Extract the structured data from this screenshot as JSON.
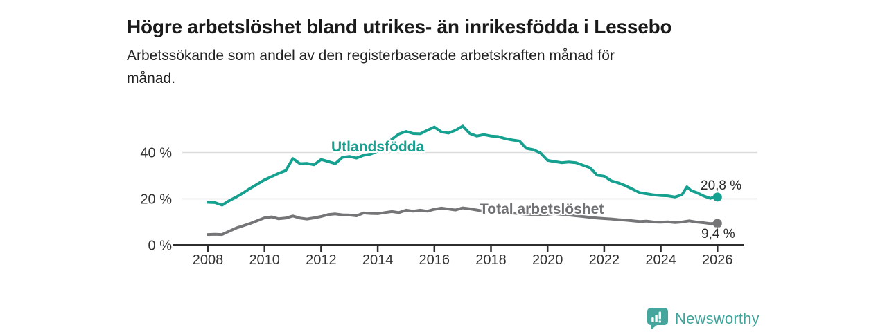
{
  "header": {
    "title": "Högre arbetslöshet bland utrikes- än inrikesfödda i Lessebo",
    "subtitle_lines": [
      "Arbetssökande som andel av den registerbaserade arbetskraften månad för",
      "månad."
    ]
  },
  "chart_data": {
    "type": "line",
    "unit": "%",
    "x_ticks": [
      2008,
      2010,
      2012,
      2014,
      2016,
      2018,
      2020,
      2022,
      2024,
      2026
    ],
    "y_ticks": [
      {
        "value": 0,
        "label": "0 %"
      },
      {
        "value": 20,
        "label": "20 %"
      },
      {
        "value": 40,
        "label": "40 %"
      }
    ],
    "xlim": [
      2006.8,
      2026.9
    ],
    "ylim": [
      0,
      57
    ],
    "grid": "horizontal",
    "legend_position": "inline-labels",
    "series": [
      {
        "name": "Utlandsfödda",
        "color": "#16A08F",
        "end_label": "20,8 %",
        "end_value": 20.8,
        "points": [
          [
            2008,
            18.5
          ],
          [
            2008.25,
            18.4
          ],
          [
            2008.5,
            17.3
          ],
          [
            2008.75,
            19.2
          ],
          [
            2009,
            20.8
          ],
          [
            2009.25,
            22.6
          ],
          [
            2009.5,
            24.6
          ],
          [
            2009.75,
            26.4
          ],
          [
            2010,
            28.2
          ],
          [
            2010.25,
            29.6
          ],
          [
            2010.5,
            31
          ],
          [
            2010.75,
            32.2
          ],
          [
            2011,
            37.4
          ],
          [
            2011.25,
            35.2
          ],
          [
            2011.5,
            35.3
          ],
          [
            2011.75,
            34.7
          ],
          [
            2012,
            37
          ],
          [
            2012.25,
            36.1
          ],
          [
            2012.5,
            35.2
          ],
          [
            2012.75,
            37.9
          ],
          [
            2013,
            38.3
          ],
          [
            2013.25,
            37.6
          ],
          [
            2013.5,
            38.8
          ],
          [
            2013.75,
            39.3
          ],
          [
            2014,
            40.6
          ],
          [
            2014.25,
            43.2
          ],
          [
            2014.5,
            45.7
          ],
          [
            2014.75,
            48
          ],
          [
            2015,
            49.1
          ],
          [
            2015.25,
            48.2
          ],
          [
            2015.5,
            48.1
          ],
          [
            2015.75,
            49.6
          ],
          [
            2016,
            51
          ],
          [
            2016.25,
            48.9
          ],
          [
            2016.5,
            48.4
          ],
          [
            2016.75,
            49.6
          ],
          [
            2017,
            51.4
          ],
          [
            2017.25,
            48.2
          ],
          [
            2017.5,
            47.1
          ],
          [
            2017.75,
            47.7
          ],
          [
            2018,
            47.1
          ],
          [
            2018.25,
            46.9
          ],
          [
            2018.5,
            46
          ],
          [
            2018.75,
            45.4
          ],
          [
            2019,
            45
          ],
          [
            2019.25,
            41.8
          ],
          [
            2019.5,
            41.2
          ],
          [
            2019.75,
            39.8
          ],
          [
            2020,
            36.6
          ],
          [
            2020.25,
            36.1
          ],
          [
            2020.5,
            35.6
          ],
          [
            2020.75,
            35.9
          ],
          [
            2021,
            35.6
          ],
          [
            2021.25,
            34.5
          ],
          [
            2021.5,
            33.4
          ],
          [
            2021.75,
            30.2
          ],
          [
            2022,
            29.8
          ],
          [
            2022.25,
            27.8
          ],
          [
            2022.5,
            26.9
          ],
          [
            2022.75,
            25.7
          ],
          [
            2023,
            24.2
          ],
          [
            2023.25,
            22.7
          ],
          [
            2023.5,
            22.2
          ],
          [
            2023.75,
            21.7
          ],
          [
            2024,
            21.4
          ],
          [
            2024.25,
            21.3
          ],
          [
            2024.5,
            20.8
          ],
          [
            2024.75,
            21.8
          ],
          [
            2024.92,
            25.2
          ],
          [
            2025.08,
            23.5
          ],
          [
            2025.25,
            22.8
          ],
          [
            2025.5,
            21.3
          ],
          [
            2025.75,
            20.2
          ],
          [
            2025.9,
            20.9
          ],
          [
            2026,
            20.8
          ]
        ]
      },
      {
        "name": "Total arbetslöshet",
        "color": "#757578",
        "end_label": "9,4 %",
        "end_value": 9.4,
        "points": [
          [
            2008,
            4.6
          ],
          [
            2008.25,
            4.7
          ],
          [
            2008.5,
            4.6
          ],
          [
            2008.75,
            6
          ],
          [
            2009,
            7.4
          ],
          [
            2009.25,
            8.4
          ],
          [
            2009.5,
            9.4
          ],
          [
            2009.75,
            10.6
          ],
          [
            2010,
            11.8
          ],
          [
            2010.25,
            12.2
          ],
          [
            2010.5,
            11.4
          ],
          [
            2010.75,
            11.7
          ],
          [
            2011,
            12.6
          ],
          [
            2011.25,
            11.7
          ],
          [
            2011.5,
            11.3
          ],
          [
            2011.75,
            11.8
          ],
          [
            2012,
            12.4
          ],
          [
            2012.25,
            13.2
          ],
          [
            2012.5,
            13.5
          ],
          [
            2012.75,
            13.1
          ],
          [
            2013,
            13
          ],
          [
            2013.25,
            12.7
          ],
          [
            2013.5,
            13.9
          ],
          [
            2013.75,
            13.7
          ],
          [
            2014,
            13.6
          ],
          [
            2014.25,
            14.1
          ],
          [
            2014.5,
            14.5
          ],
          [
            2014.75,
            14.1
          ],
          [
            2015,
            15.1
          ],
          [
            2015.25,
            14.7
          ],
          [
            2015.5,
            15.1
          ],
          [
            2015.75,
            14.7
          ],
          [
            2016,
            15.5
          ],
          [
            2016.25,
            16
          ],
          [
            2016.5,
            15.6
          ],
          [
            2016.75,
            15.2
          ],
          [
            2017,
            16.1
          ],
          [
            2017.25,
            15.7
          ],
          [
            2017.5,
            15.2
          ],
          [
            2017.75,
            14.7
          ],
          [
            2018,
            14.6
          ],
          [
            2018.25,
            14.4
          ],
          [
            2018.5,
            14.2
          ],
          [
            2018.75,
            13.9
          ],
          [
            2019,
            13.6
          ],
          [
            2019.25,
            13.4
          ],
          [
            2019.5,
            13.2
          ],
          [
            2019.75,
            13.1
          ],
          [
            2020,
            13.3
          ],
          [
            2020.25,
            13.6
          ],
          [
            2020.5,
            13.3
          ],
          [
            2020.75,
            13
          ],
          [
            2021,
            12.7
          ],
          [
            2021.25,
            12.4
          ],
          [
            2021.5,
            12
          ],
          [
            2021.75,
            11.7
          ],
          [
            2022,
            11.5
          ],
          [
            2022.25,
            11.3
          ],
          [
            2022.5,
            11
          ],
          [
            2022.75,
            10.8
          ],
          [
            2023,
            10.5
          ],
          [
            2023.25,
            10.2
          ],
          [
            2023.5,
            10.4
          ],
          [
            2023.75,
            10
          ],
          [
            2024,
            9.9
          ],
          [
            2024.25,
            10.1
          ],
          [
            2024.5,
            9.8
          ],
          [
            2024.75,
            10
          ],
          [
            2025,
            10.5
          ],
          [
            2025.25,
            10
          ],
          [
            2025.5,
            9.7
          ],
          [
            2025.75,
            9.3
          ],
          [
            2026,
            9.4
          ]
        ]
      }
    ]
  },
  "branding": {
    "name": "Newsworthy",
    "icon": "bar-chart-speech-bubble",
    "icon_color": "#44A69D",
    "text_color": "#3EA39A"
  },
  "colors": {
    "teal": "#16A08F",
    "gray": "#757578",
    "axis": "#2d2d2d",
    "grid": "#dcdcdc",
    "title_text": "#1a1a1a"
  }
}
